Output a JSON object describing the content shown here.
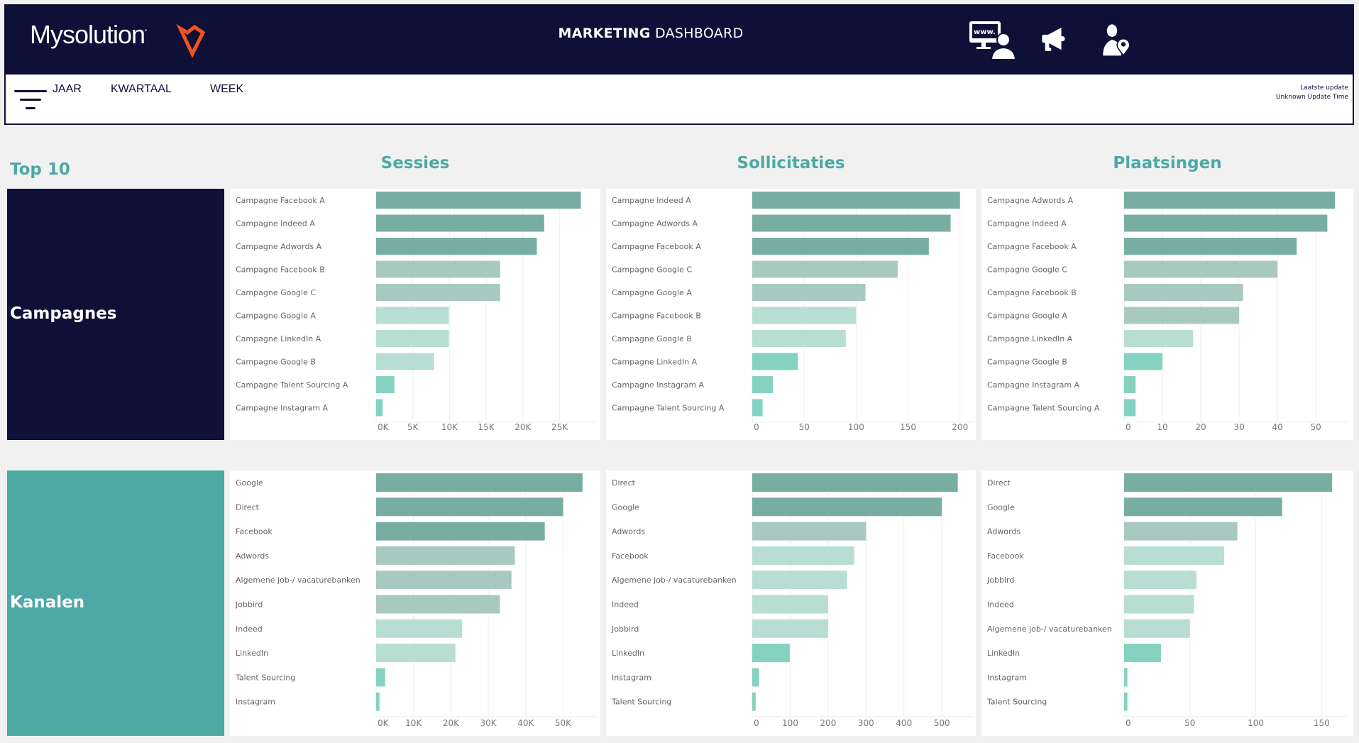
{
  "header": {
    "logo_text": "Mysolution",
    "title_bold": "MARKETING",
    "title_light": "DASHBOARD",
    "nav_icons": [
      "web-visitor-icon",
      "megaphone-icon",
      "person-location-icon"
    ],
    "filters": [
      "JAAR",
      "KWARTAAL",
      "WEEK"
    ],
    "update_label": "Laatste update",
    "update_value": "Unknown Update Time"
  },
  "colors": {
    "navy": "#0f1038",
    "teal_panel": "#4ea8a4",
    "accent_orange": "#f0541e",
    "bar_dark": "#78aea2",
    "bar_mid": "#a8c9c0",
    "bar_light": "#b8ddd3",
    "bar_bright": "#86d2c0"
  },
  "sections": {
    "top10": "Top 10",
    "columns": [
      "Sessies",
      "Sollicitaties",
      "Plaatsingen"
    ],
    "rows": [
      "Campagnes",
      "Kanalen"
    ]
  },
  "chart_data": [
    {
      "type": "bar",
      "orientation": "horizontal",
      "row": "Campagnes",
      "title": "Sessies",
      "categories": [
        "Campagne Facebook A",
        "Campagne Indeed A",
        "Campagne Adwords A",
        "Campagne Facebook B",
        "Campagne Google C",
        "Campagne Google A",
        "Campagne LinkedIn A",
        "Campagne Google B",
        "Campagne Talent Sourcing A",
        "Campagne Instagram A"
      ],
      "values": [
        27900,
        22900,
        21900,
        16900,
        16900,
        9900,
        9900,
        7900,
        2500,
        900
      ],
      "tiers": [
        "dark",
        "dark",
        "dark",
        "mid",
        "mid",
        "light",
        "light",
        "light",
        "bright",
        "bright"
      ],
      "xticks": [
        "0K",
        "5K",
        "10K",
        "15K",
        "20K",
        "25K"
      ],
      "xtick_values": [
        0,
        5000,
        10000,
        15000,
        20000,
        25000
      ],
      "xlim": [
        0,
        29300
      ],
      "grid": true
    },
    {
      "type": "bar",
      "orientation": "horizontal",
      "row": "Campagnes",
      "title": "Sollicitaties",
      "categories": [
        "Campagne Indeed A",
        "Campagne Adwords A",
        "Campagne Facebook A",
        "Campagne Google C",
        "Campagne Google A",
        "Campagne Facebook B",
        "Campagne Google B",
        "Campagne LinkedIn A",
        "Campagne Instagram A",
        "Campagne Talent Sourcing A"
      ],
      "values": [
        200,
        191,
        170,
        140,
        109,
        100,
        90,
        44,
        20,
        10
      ],
      "tiers": [
        "dark",
        "dark",
        "dark",
        "mid",
        "mid",
        "light",
        "light",
        "bright",
        "bright",
        "bright"
      ],
      "xticks": [
        "0",
        "50",
        "100",
        "150",
        "200"
      ],
      "xtick_values": [
        0,
        50,
        100,
        150,
        200
      ],
      "xlim": [
        0,
        207
      ],
      "grid": true
    },
    {
      "type": "bar",
      "orientation": "horizontal",
      "row": "Campagnes",
      "title": "Plaatsingen",
      "categories": [
        "Campagne Adwords A",
        "Campagne Indeed A",
        "Campagne Facebook A",
        "Campagne Google C",
        "Campagne Facebook B",
        "Campagne Google A",
        "Campagne LinkedIn A",
        "Campagne Google B",
        "Campagne Instagram A",
        "Campagne Talent Sourcing A"
      ],
      "values": [
        55,
        53,
        45,
        40,
        31,
        30,
        18,
        10,
        3,
        3
      ],
      "tiers": [
        "dark",
        "dark",
        "dark",
        "mid",
        "mid",
        "mid",
        "light",
        "bright",
        "bright",
        "bright"
      ],
      "xticks": [
        "0",
        "10",
        "20",
        "30",
        "40",
        "50"
      ],
      "xtick_values": [
        0,
        10,
        20,
        30,
        40,
        50
      ],
      "xlim": [
        0,
        57
      ],
      "grid": true
    },
    {
      "type": "bar",
      "orientation": "horizontal",
      "row": "Kanalen",
      "title": "Sessies",
      "categories": [
        "Google",
        "Direct",
        "Facebook",
        "Adwords",
        "Algemene job-/ vacaturebanken",
        "Jobbird",
        "Indeed",
        "LinkedIn",
        "Talent Sourcing",
        "Instagram"
      ],
      "values": [
        55200,
        50000,
        45100,
        37100,
        36200,
        33100,
        23000,
        21200,
        2400,
        900
      ],
      "tiers": [
        "dark",
        "dark",
        "dark",
        "mid",
        "mid",
        "mid",
        "light",
        "light",
        "bright",
        "bright"
      ],
      "xticks": [
        "0K",
        "10K",
        "20K",
        "30K",
        "40K",
        "50K"
      ],
      "xtick_values": [
        0,
        10000,
        20000,
        30000,
        40000,
        50000
      ],
      "xlim": [
        0,
        57500
      ],
      "grid": true
    },
    {
      "type": "bar",
      "orientation": "horizontal",
      "row": "Kanalen",
      "title": "Sollicitaties",
      "categories": [
        "Direct",
        "Google",
        "Adwords",
        "Facebook",
        "Algemene job-/ vacaturebanken",
        "Indeed",
        "Jobbird",
        "LinkedIn",
        "Instagram",
        "Talent Sourcing"
      ],
      "values": [
        542,
        500,
        300,
        269,
        250,
        200,
        200,
        99,
        18,
        9
      ],
      "tiers": [
        "dark",
        "dark",
        "mid",
        "light",
        "light",
        "light",
        "light",
        "bright",
        "bright",
        "bright"
      ],
      "xticks": [
        "0",
        "100",
        "200",
        "300",
        "400",
        "500"
      ],
      "xtick_values": [
        0,
        100,
        200,
        300,
        400,
        500
      ],
      "xlim": [
        0,
        567
      ],
      "grid": true
    },
    {
      "type": "bar",
      "orientation": "horizontal",
      "row": "Kanalen",
      "title": "Plaatsingen",
      "categories": [
        "Direct",
        "Google",
        "Adwords",
        "Facebook",
        "Jobbird",
        "Indeed",
        "Algemene job-/ vacaturebanken",
        "LinkedIn",
        "Instagram",
        "Talent Sourcing"
      ],
      "values": [
        158,
        120,
        86,
        76,
        55,
        53,
        50,
        28,
        2.5,
        2.5
      ],
      "tiers": [
        "dark",
        "dark",
        "mid",
        "light",
        "light",
        "light",
        "light",
        "bright",
        "bright",
        "bright"
      ],
      "xticks": [
        "0",
        "50",
        "100",
        "150"
      ],
      "xtick_values": [
        0,
        50,
        100,
        150
      ],
      "xlim": [
        0,
        166
      ],
      "grid": true
    }
  ]
}
